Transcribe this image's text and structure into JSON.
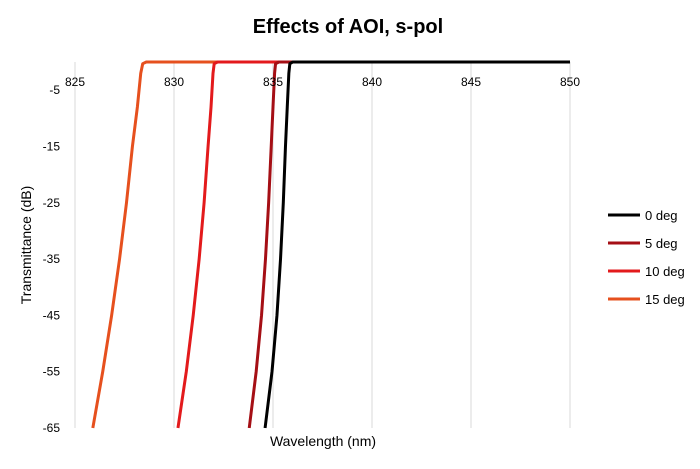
{
  "chart_data": {
    "type": "line",
    "title": "Effects of AOI, s-pol",
    "xlabel": "Wavelength (nm)",
    "ylabel": "Transmittance (dB)",
    "xlim": [
      825,
      850
    ],
    "ylim": [
      -65,
      0
    ],
    "x_ticks": [
      "825",
      "830",
      "835",
      "840",
      "845",
      "850"
    ],
    "y_ticks": [
      "-5",
      "-15",
      "-25",
      "-35",
      "-45",
      "-55",
      "-65"
    ],
    "grid": "vertical",
    "legend_position": "right",
    "series": [
      {
        "name": "0 deg",
        "color": "#000000",
        "points": [
          [
            834.6,
            -65
          ],
          [
            834.95,
            -55
          ],
          [
            835.2,
            -45
          ],
          [
            835.38,
            -35
          ],
          [
            835.52,
            -25
          ],
          [
            835.63,
            -15
          ],
          [
            835.72,
            -8
          ],
          [
            835.8,
            -2
          ],
          [
            835.85,
            -0.3
          ],
          [
            836.0,
            0
          ],
          [
            850,
            0
          ]
        ]
      },
      {
        "name": "5 deg",
        "color": "#a50f15",
        "points": [
          [
            833.8,
            -65
          ],
          [
            834.15,
            -55
          ],
          [
            834.42,
            -45
          ],
          [
            834.62,
            -35
          ],
          [
            834.78,
            -25
          ],
          [
            834.91,
            -15
          ],
          [
            835.0,
            -8
          ],
          [
            835.08,
            -2
          ],
          [
            835.13,
            -0.3
          ],
          [
            835.3,
            0
          ],
          [
            850,
            0
          ]
        ]
      },
      {
        "name": "10 deg",
        "color": "#e31a1c",
        "points": [
          [
            830.2,
            -65
          ],
          [
            830.62,
            -55
          ],
          [
            830.97,
            -45
          ],
          [
            831.27,
            -35
          ],
          [
            831.52,
            -25
          ],
          [
            831.72,
            -15
          ],
          [
            831.87,
            -8
          ],
          [
            831.97,
            -2
          ],
          [
            832.03,
            -0.3
          ],
          [
            832.2,
            0
          ],
          [
            850,
            0
          ]
        ]
      },
      {
        "name": "15 deg",
        "color": "#e6501e",
        "points": [
          [
            825.9,
            -65
          ],
          [
            826.4,
            -55
          ],
          [
            826.85,
            -45
          ],
          [
            827.25,
            -35
          ],
          [
            827.6,
            -25
          ],
          [
            827.9,
            -15
          ],
          [
            828.15,
            -8
          ],
          [
            828.32,
            -2
          ],
          [
            828.42,
            -0.3
          ],
          [
            828.6,
            0
          ],
          [
            850,
            0
          ]
        ]
      }
    ]
  }
}
